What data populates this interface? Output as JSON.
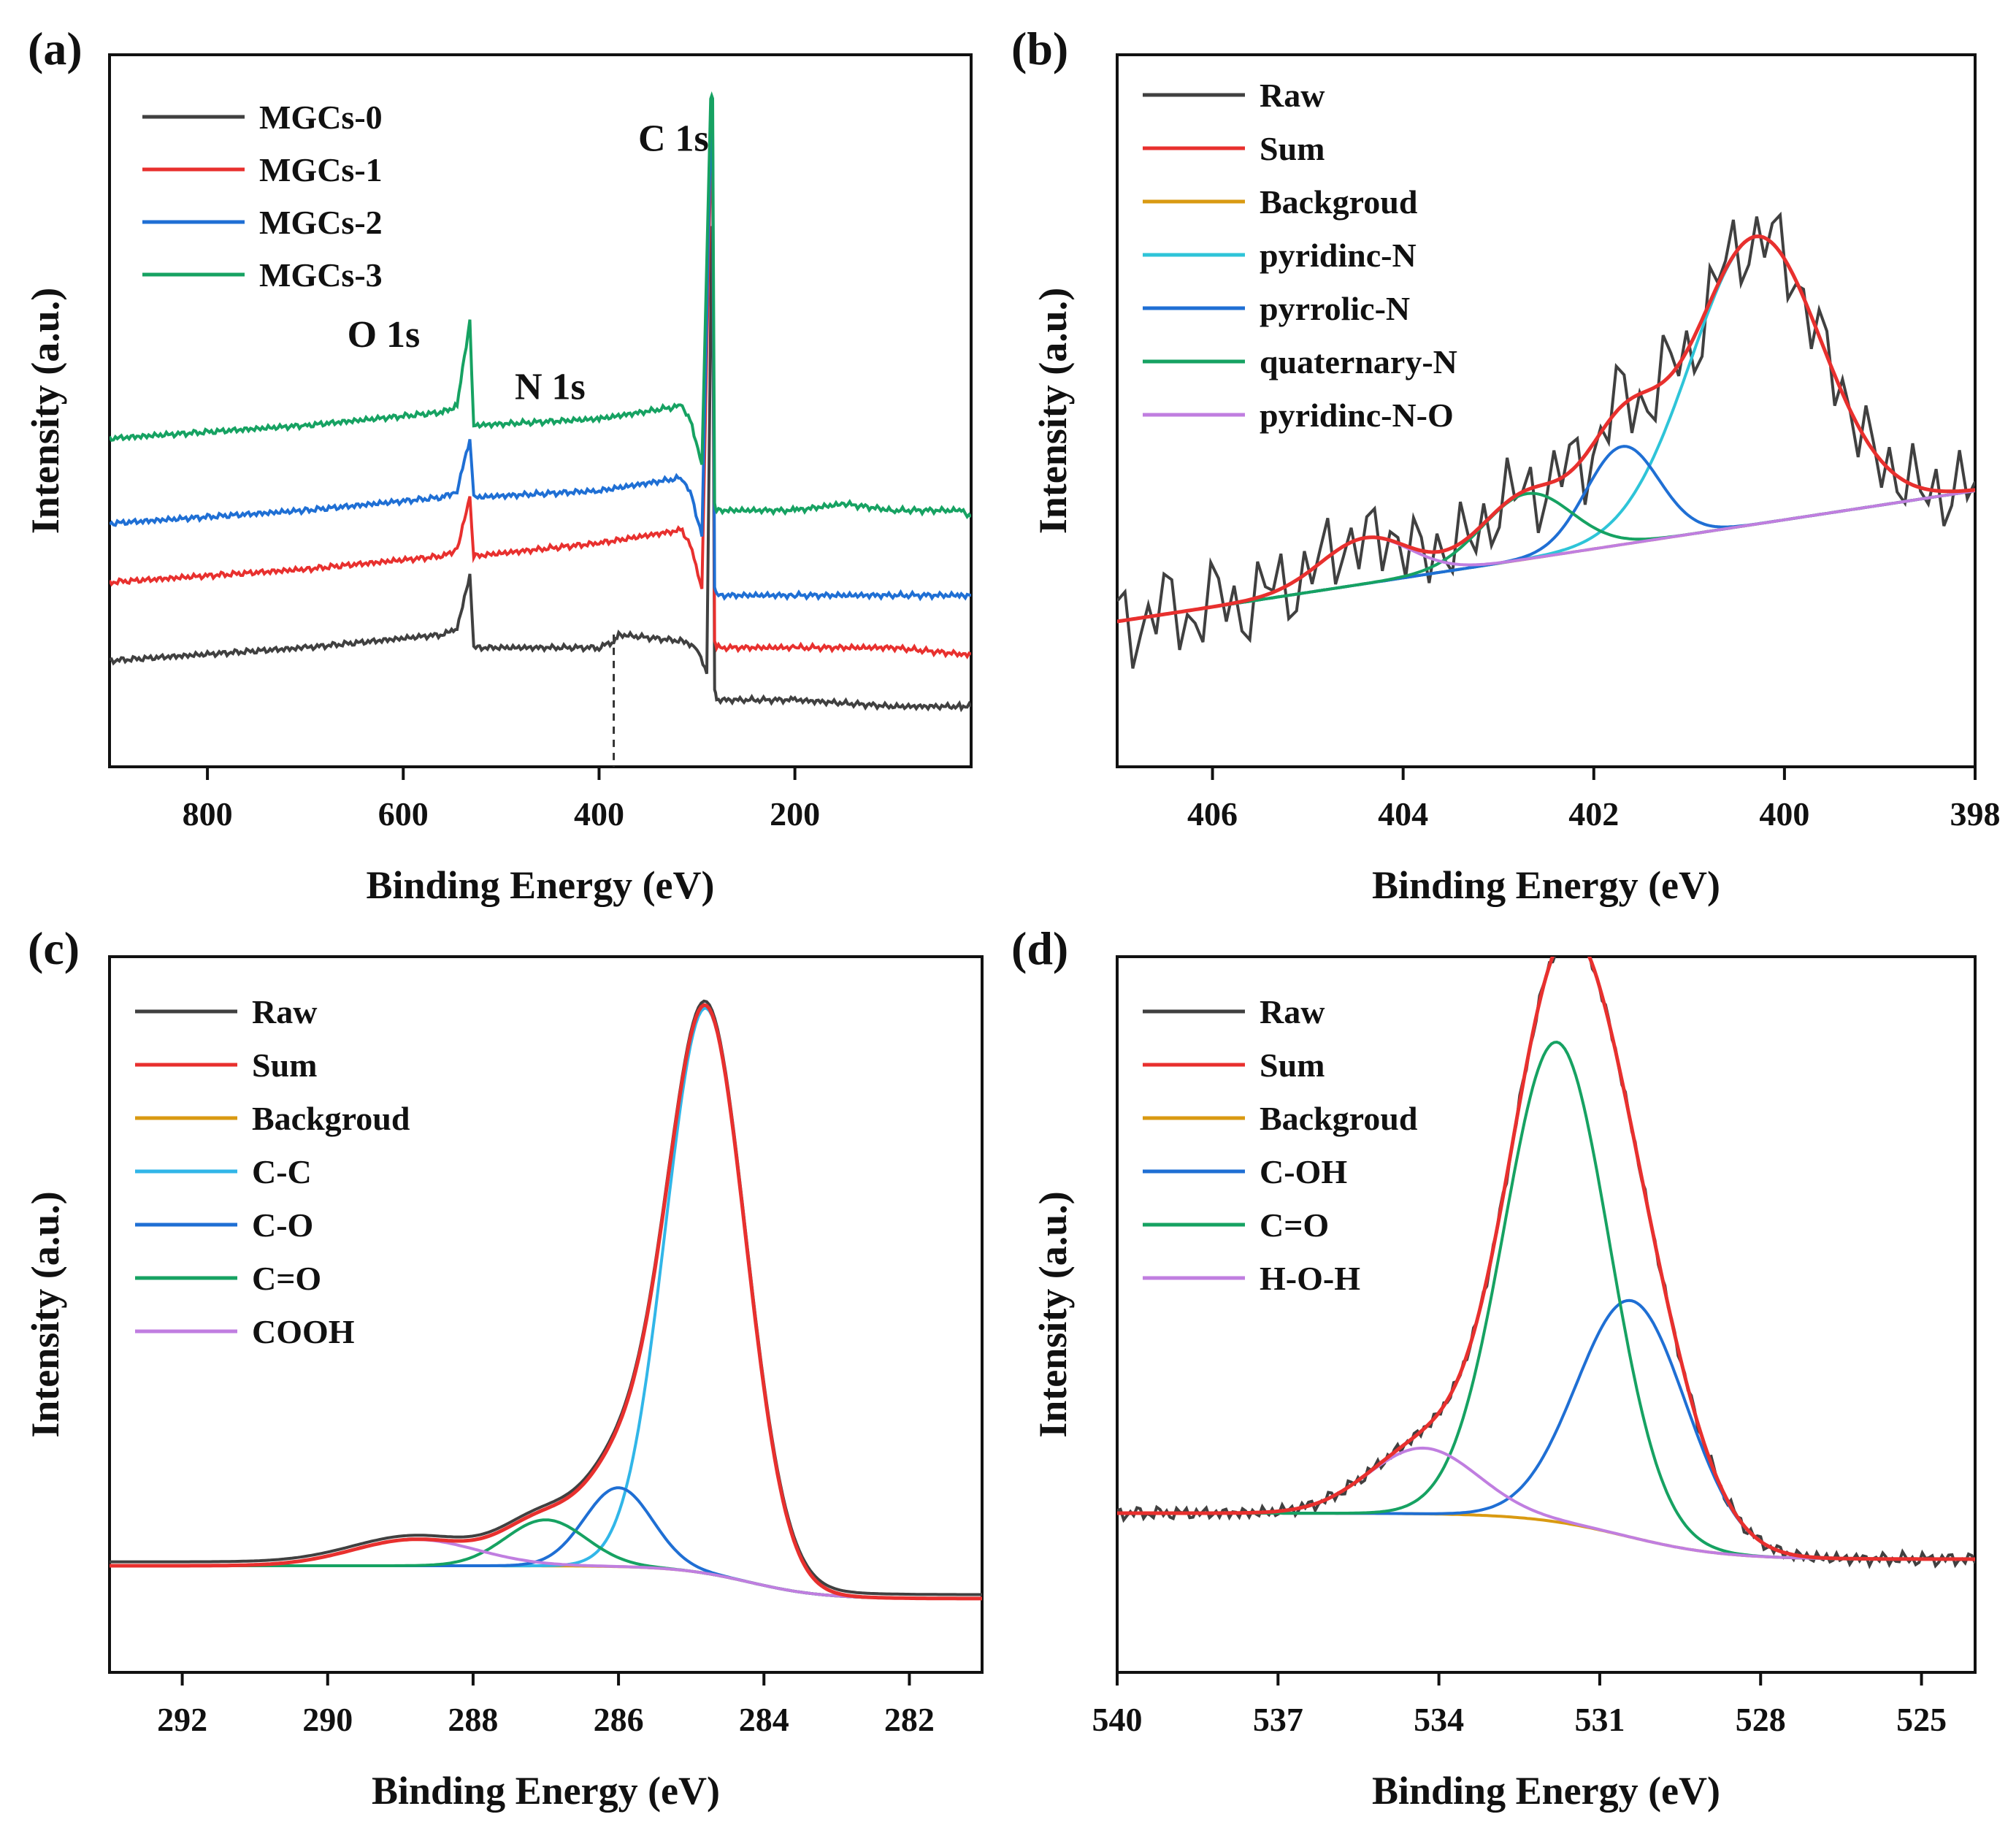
{
  "chart_data": [
    {
      "panel": "(a)",
      "type": "line",
      "xlabel": "Binding Energy (eV)",
      "ylabel": "Intensity (a.u.)",
      "xlim": [
        900,
        20
      ],
      "ylim": [
        0,
        100
      ],
      "xticks": [
        800,
        600,
        400,
        200
      ],
      "legend": [
        {
          "name": "MGCs-0",
          "color": "#404040"
        },
        {
          "name": "MGCs-1",
          "color": "#e8302e"
        },
        {
          "name": "MGCs-2",
          "color": "#1f6fd4"
        },
        {
          "name": "MGCs-3",
          "color": "#16a262"
        }
      ],
      "annotations": [
        {
          "text": "O 1s",
          "x": 620,
          "y": 62
        },
        {
          "text": "N 1s",
          "x": 450,
          "y": 54
        },
        {
          "text": "C 1s",
          "x": 324,
          "y": 92
        }
      ],
      "dashed_line_x": 385,
      "series": [
        {
          "name": "MGCs-0",
          "color": "#404040",
          "x": [
            900,
            700,
            560,
            545,
            532,
            528,
            400,
            385,
            380,
            315,
            300,
            290,
            285,
            284,
            282,
            280,
            200,
            100,
            30,
            20
          ],
          "y": [
            14,
            16,
            18,
            19,
            27,
            16,
            16,
            17,
            18,
            17,
            16,
            12,
            80,
            80,
            10,
            8,
            8,
            7,
            7,
            7
          ]
        },
        {
          "name": "MGCs-1",
          "color": "#e8302e",
          "x": [
            900,
            700,
            560,
            545,
            532,
            528,
            400,
            315,
            305,
            295,
            286,
            284,
            282,
            280,
            200,
            100,
            30,
            20
          ],
          "y": [
            26,
            28,
            30,
            31,
            39,
            30,
            32,
            34,
            31,
            25,
            90,
            90,
            17,
            16,
            16,
            16,
            15,
            15
          ]
        },
        {
          "name": "MGCs-2",
          "color": "#1f6fd4",
          "x": [
            900,
            700,
            560,
            545,
            532,
            528,
            400,
            315,
            305,
            295,
            286,
            284,
            282,
            280,
            200,
            100,
            30,
            20
          ],
          "y": [
            35,
            37,
            39,
            40,
            48,
            39,
            40,
            42,
            39,
            33,
            95,
            95,
            25,
            24,
            24,
            24,
            24,
            24
          ]
        },
        {
          "name": "MGCs-3",
          "color": "#16a262",
          "x": [
            900,
            700,
            560,
            545,
            532,
            528,
            400,
            315,
            305,
            295,
            286,
            284,
            282,
            280,
            200,
            150,
            100,
            30,
            20
          ],
          "y": [
            48,
            50,
            52,
            53,
            66,
            50,
            51,
            53,
            50,
            44,
            100,
            100,
            38,
            37,
            37,
            38,
            37,
            37,
            36
          ]
        }
      ]
    },
    {
      "panel": "(b)",
      "type": "line",
      "xlabel": "Binding Energy (eV)",
      "ylabel": "Intensity (a.u.)",
      "xlim": [
        407,
        398
      ],
      "ylim": [
        0,
        100
      ],
      "xticks": [
        406,
        404,
        402,
        400,
        398
      ],
      "legend": [
        {
          "name": "Raw",
          "color": "#404040"
        },
        {
          "name": "Sum",
          "color": "#e8302e"
        },
        {
          "name": "Backgroud",
          "color": "#d99a12"
        },
        {
          "name": "pyridinc-N",
          "color": "#2ec4d8"
        },
        {
          "name": "pyrrolic-N",
          "color": "#1f6fd4"
        },
        {
          "name": "quaternary-N",
          "color": "#16a262"
        },
        {
          "name": "pyridinc-N-O",
          "color": "#c07ee0"
        }
      ],
      "background": {
        "x": [
          407,
          398
        ],
        "y": [
          20,
          40
        ]
      },
      "peaks": [
        {
          "name": "pyridinc-N",
          "center": 400.3,
          "height": 44,
          "fwhm": 1.6,
          "color": "#2ec4d8"
        },
        {
          "name": "pyrrolic-N",
          "center": 401.7,
          "height": 15,
          "fwhm": 0.9,
          "color": "#1f6fd4"
        },
        {
          "name": "quaternary-N",
          "center": 402.7,
          "height": 10,
          "fwhm": 1.1,
          "color": "#16a262"
        },
        {
          "name": "pyridinc-N-O",
          "center": 404.4,
          "height": 7,
          "fwhm": 1.1,
          "color": "#c07ee0"
        }
      ],
      "raw_noise_amplitude": 9
    },
    {
      "panel": "(c)",
      "type": "line",
      "xlabel": "Binding Energy (eV)",
      "ylabel": "Intensity (a.u.)",
      "xlim": [
        293,
        281
      ],
      "ylim": [
        0,
        100
      ],
      "xticks": [
        292,
        290,
        288,
        286,
        284,
        282
      ],
      "legend": [
        {
          "name": "Raw",
          "color": "#404040"
        },
        {
          "name": "Sum",
          "color": "#e8302e"
        },
        {
          "name": "Backgroud",
          "color": "#d99a12"
        },
        {
          "name": "C-C",
          "color": "#31b6e8"
        },
        {
          "name": "C-O",
          "color": "#1f6fd4"
        },
        {
          "name": "C=O",
          "color": "#16a262"
        },
        {
          "name": "COOH",
          "color": "#c07ee0"
        }
      ],
      "background": {
        "type": "shirley",
        "high": 14,
        "low": 9,
        "center": 284.2,
        "width": 0.5
      },
      "peaks": [
        {
          "name": "C-C",
          "center": 284.8,
          "height": 86,
          "fwhm": 1.3,
          "color": "#31b6e8"
        },
        {
          "name": "C-O",
          "center": 286.0,
          "height": 12,
          "fwhm": 1.1,
          "color": "#1f6fd4"
        },
        {
          "name": "C=O",
          "center": 287.0,
          "height": 7,
          "fwhm": 1.3,
          "color": "#16a262"
        },
        {
          "name": "COOH",
          "center": 288.8,
          "height": 4,
          "fwhm": 2.0,
          "color": "#c07ee0"
        }
      ]
    },
    {
      "panel": "(d)",
      "type": "line",
      "xlabel": "Binding Energy (eV)",
      "ylabel": "Intensity (a.u.)",
      "xlim": [
        540,
        524
      ],
      "ylim": [
        0,
        100
      ],
      "xticks": [
        540,
        537,
        534,
        531,
        528,
        525
      ],
      "legend": [
        {
          "name": "Raw",
          "color": "#404040"
        },
        {
          "name": "Sum",
          "color": "#e8302e"
        },
        {
          "name": "Backgroud",
          "color": "#d99a12"
        },
        {
          "name": "C-OH",
          "color": "#1f6fd4"
        },
        {
          "name": "C=O",
          "color": "#16a262"
        },
        {
          "name": "H-O-H",
          "color": "#c07ee0"
        }
      ],
      "background": {
        "type": "shirley",
        "high": 22,
        "low": 15,
        "center": 530.5,
        "width": 0.9
      },
      "peaks": [
        {
          "name": "C-OH",
          "center": 530.4,
          "height": 36,
          "fwhm": 2.4,
          "color": "#1f6fd4"
        },
        {
          "name": "C=O",
          "center": 531.8,
          "height": 73,
          "fwhm": 2.3,
          "color": "#16a262"
        },
        {
          "name": "H-O-H",
          "center": 534.3,
          "height": 10,
          "fwhm": 2.4,
          "color": "#c07ee0"
        }
      ],
      "raw_noise_amplitude": 1.2
    }
  ]
}
